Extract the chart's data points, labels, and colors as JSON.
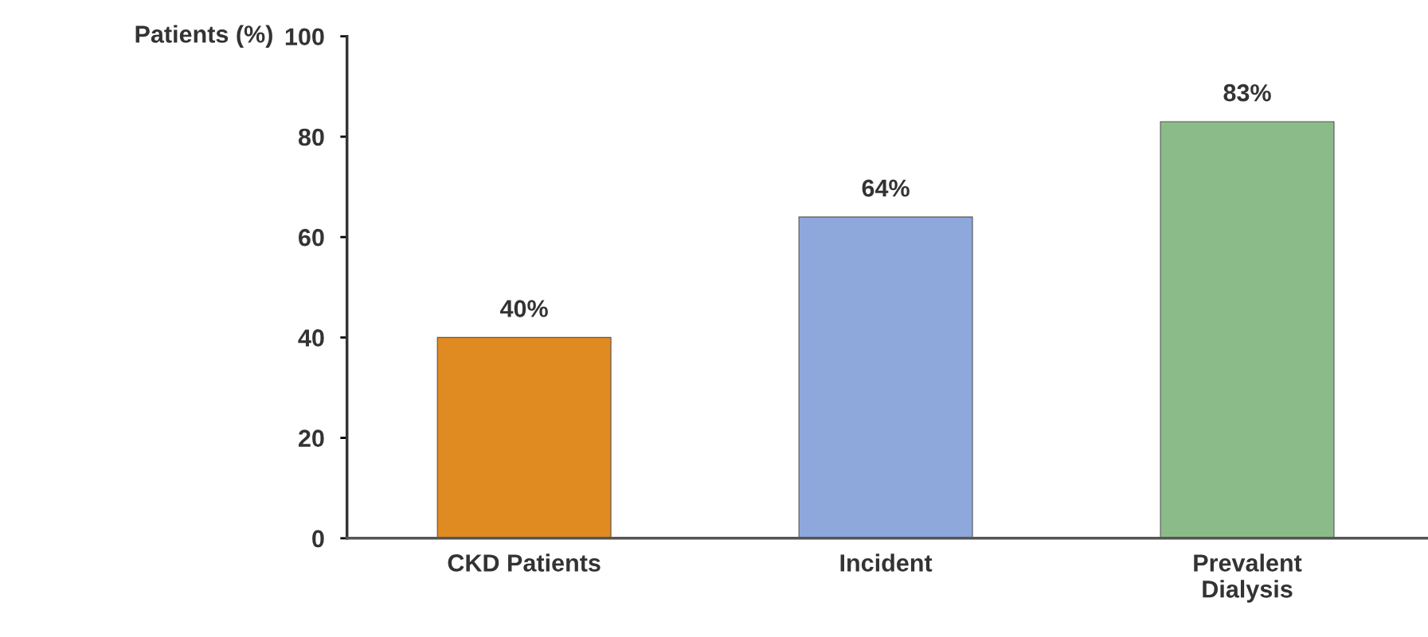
{
  "chart_data": {
    "type": "bar",
    "ylabel": "Patients (%)",
    "categories": [
      "CKD Patients",
      "Incident",
      "Prevalent\nDialysis"
    ],
    "values": [
      40,
      64,
      83
    ],
    "colors": [
      "#e08a22",
      "#8ea8dc",
      "#8cbb8a"
    ],
    "value_labels": [
      "40%",
      "64%",
      "83%"
    ],
    "ylim": [
      0,
      100
    ],
    "yticks": [
      0,
      20,
      40,
      60,
      80,
      100
    ],
    "grid": false,
    "legend": false
  }
}
